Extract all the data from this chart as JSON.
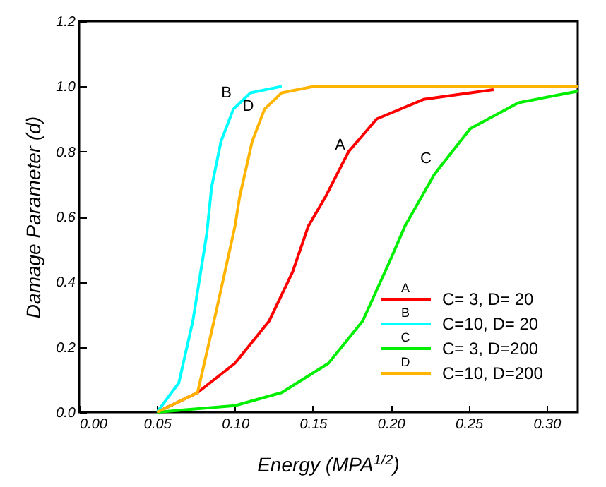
{
  "chart_data": {
    "type": "line",
    "xlabel": "Energy (MPA$^{1/2}$)",
    "ylabel": "Damage Parameter (d)",
    "xlim": [
      0,
      0.32
    ],
    "xticks": [
      {
        "value": 0,
        "label": "0.00"
      },
      0.05,
      {
        "value": 0.1,
        "label": "0.10"
      },
      0.15,
      {
        "value": 0.2,
        "label": "0.20"
      },
      0.25,
      {
        "value": 0.3,
        "label": "0.30"
      }
    ],
    "ylim": [
      0,
      1.2
    ],
    "yticks": [
      {
        "value": 0,
        "label": "0.0"
      },
      0.2,
      0.4,
      0.6,
      0.8,
      {
        "value": 1,
        "label": "1.0"
      },
      1.2
    ],
    "grid": false,
    "legend": "bottom right",
    "marker": "none",
    "line_style": "solid",
    "series": [
      {
        "name": "C= 3, D= 20",
        "color": "#ff0000",
        "x": [
          0.05,
          0.076,
          0.1,
          0.122,
          0.137,
          0.147,
          0.158,
          0.173,
          0.191,
          0.221,
          0.266
        ],
        "values": [
          0,
          0.06,
          0.15,
          0.28,
          0.43,
          0.57,
          0.66,
          0.8,
          0.9,
          0.96,
          0.99
        ]
      },
      {
        "name": "C=10, D= 20",
        "color": "#00ffff",
        "x": [
          0.05,
          0.064,
          0.073,
          0.082,
          0.085,
          0.091,
          0.099,
          0.11,
          0.13
        ],
        "values": [
          0,
          0.09,
          0.28,
          0.55,
          0.69,
          0.83,
          0.93,
          0.98,
          1.0
        ]
      },
      {
        "name": "C= 3, D=200",
        "color": "#00ee00",
        "x": [
          0.05,
          0.1,
          0.13,
          0.16,
          0.182,
          0.2,
          0.209,
          0.228,
          0.251,
          0.282,
          0.32
        ],
        "values": [
          0,
          0.02,
          0.06,
          0.15,
          0.28,
          0.47,
          0.57,
          0.73,
          0.87,
          0.95,
          0.985
        ]
      },
      {
        "name": "C=10, D=200",
        "color": "#ffb400",
        "x": [
          0.05,
          0.076,
          0.088,
          0.1,
          0.103,
          0.111,
          0.119,
          0.13,
          0.151,
          0.32
        ],
        "values": [
          0,
          0.06,
          0.31,
          0.57,
          0.66,
          0.83,
          0.93,
          0.98,
          1.0,
          1.0
        ]
      }
    ],
    "annotations": [
      {
        "text": "A",
        "x": 0.173,
        "y": 0.81
      },
      {
        "text": "B",
        "x": 0.1,
        "y": 0.97
      },
      {
        "text": "C",
        "x": 0.228,
        "y": 0.77
      },
      {
        "text": "D",
        "x": 0.114,
        "y": 0.93
      }
    ]
  }
}
